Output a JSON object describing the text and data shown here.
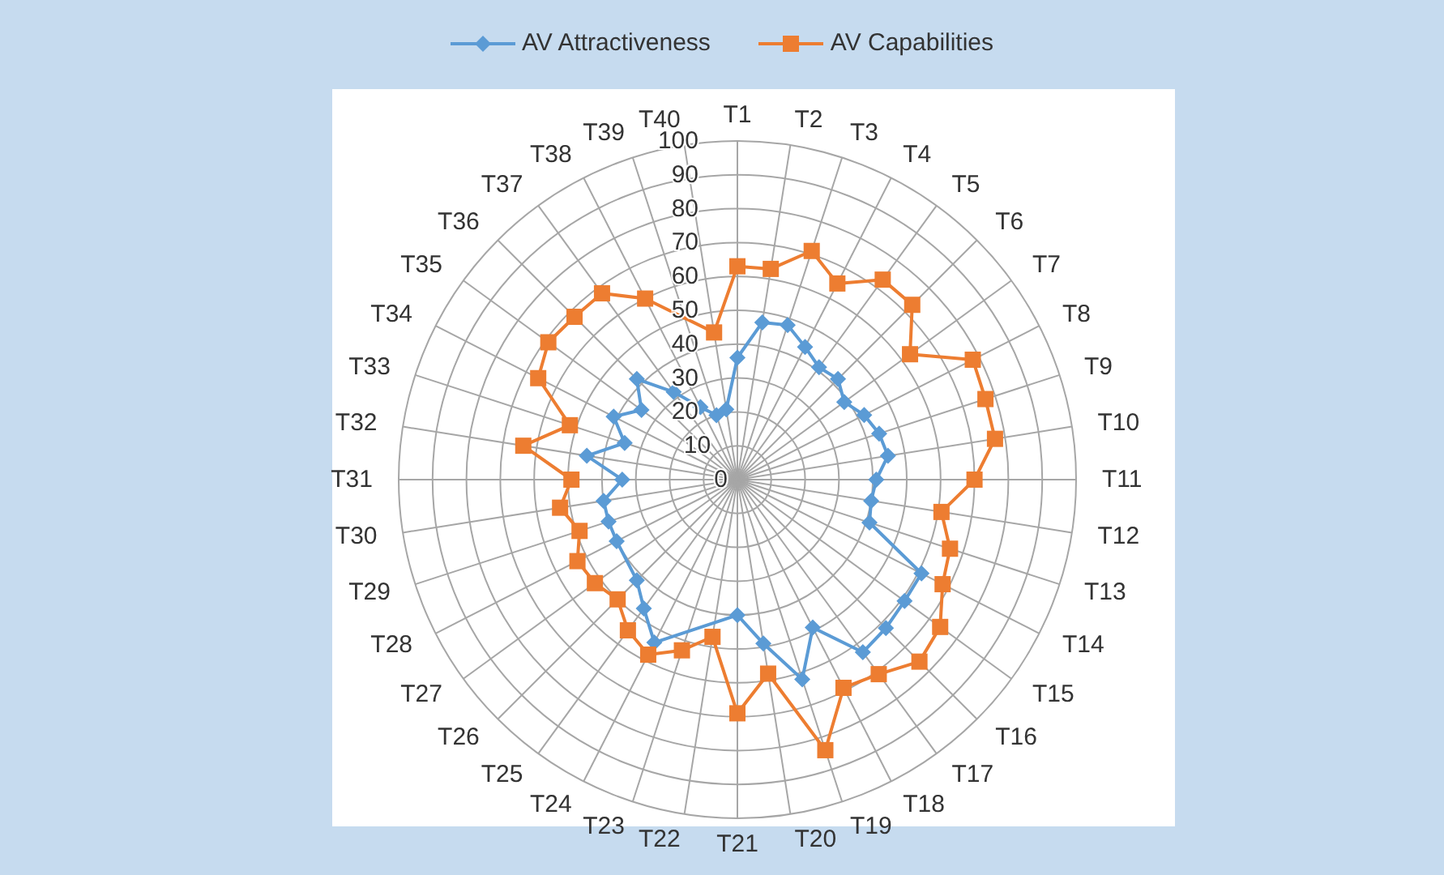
{
  "chart_data": {
    "type": "radar",
    "categories": [
      "T1",
      "T2",
      "T3",
      "T4",
      "T5",
      "T6",
      "T7",
      "T8",
      "T9",
      "T10",
      "T11",
      "T12",
      "T13",
      "T14",
      "T15",
      "T16",
      "T17",
      "T18",
      "T19",
      "T20",
      "T21",
      "T22",
      "T23",
      "T24",
      "T25",
      "T26",
      "T27",
      "T28",
      "T29",
      "T30",
      "T31",
      "T32",
      "T33",
      "T34",
      "T35",
      "T36",
      "T37",
      "T38",
      "T39",
      "T40"
    ],
    "series": [
      {
        "name": "AV Attractiveness",
        "color": "#5b9bd5",
        "marker": "diamond",
        "values": [
          36,
          47,
          48,
          44,
          41,
          42,
          39,
          42,
          44,
          45,
          41,
          40,
          41,
          61,
          61,
          62,
          63,
          49,
          62,
          49,
          40,
          null,
          null,
          54,
          47,
          42,
          null,
          40,
          40,
          40,
          34,
          45,
          35,
          41,
          35,
          42,
          32,
          24,
          20,
          21
        ]
      },
      {
        "name": "AV Capabilities",
        "color": "#ed7d31",
        "marker": "square",
        "values": [
          63,
          63,
          71,
          65,
          73,
          73,
          63,
          78,
          77,
          77,
          70,
          61,
          66,
          68,
          74,
          76,
          71,
          69,
          84,
          58,
          69,
          47,
          53,
          58,
          55,
          50,
          52,
          53,
          49,
          53,
          49,
          64,
          52,
          66,
          69,
          68,
          68,
          60,
          null,
          44
        ]
      }
    ],
    "ylim": [
      0,
      100
    ],
    "yticks": [
      0,
      10,
      20,
      30,
      40,
      50,
      60,
      70,
      80,
      90,
      100
    ],
    "grid": true,
    "legend": "top"
  }
}
